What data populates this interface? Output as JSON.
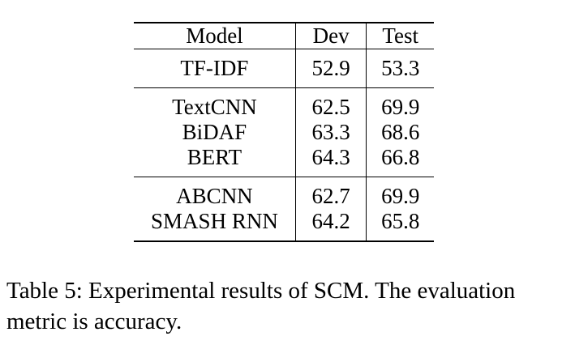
{
  "table": {
    "headers": {
      "model": "Model",
      "dev": "Dev",
      "test": "Test"
    },
    "groups": [
      [
        {
          "model": "TF-IDF",
          "dev": "52.9",
          "test": "53.3"
        }
      ],
      [
        {
          "model": "TextCNN",
          "dev": "62.5",
          "test": "69.9"
        },
        {
          "model": "BiDAF",
          "dev": "63.3",
          "test": "68.6"
        },
        {
          "model": "BERT",
          "dev": "64.3",
          "test": "66.8"
        }
      ],
      [
        {
          "model": "ABCNN",
          "dev": "62.7",
          "test": "69.9"
        },
        {
          "model": "SMASH RNN",
          "dev": "64.2",
          "test": "65.8"
        }
      ]
    ],
    "bold_cells": [
      "TextCNN.test",
      "BERT.dev",
      "ABCNN.test"
    ]
  },
  "caption": "Table 5: Experimental results of SCM. The evaluation metric is accuracy."
}
